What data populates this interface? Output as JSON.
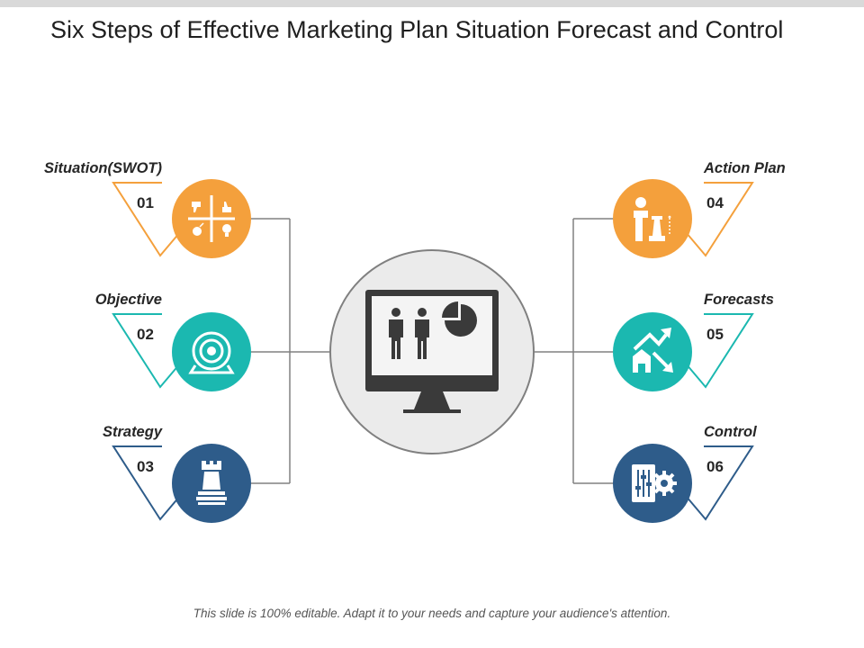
{
  "title": "Six Steps of Effective Marketing Plan Situation Forecast and Control",
  "footer": "This slide is 100% editable.  Adapt it to your needs and capture your audience's attention.",
  "colors": {
    "orange": "#F4A03C",
    "teal": "#1BB8B0",
    "blue": "#2E5C8A",
    "connector": "#808080",
    "center_fill": "#EBEBEB",
    "center_stroke": "#808080",
    "icon_dark": "#3a3a3a"
  },
  "center": {
    "icon": "monitor-presentation-icon"
  },
  "steps": [
    {
      "number": "01",
      "label": "Situation(SWOT)",
      "color": "orange",
      "icon": "swot-grid-icon"
    },
    {
      "number": "02",
      "label": "Objective",
      "color": "teal",
      "icon": "target-icon"
    },
    {
      "number": "03",
      "label": "Strategy",
      "color": "blue",
      "icon": "chess-rook-icon"
    },
    {
      "number": "04",
      "label": "Action Plan",
      "color": "orange",
      "icon": "businessman-chess-icon"
    },
    {
      "number": "05",
      "label": "Forecasts",
      "color": "teal",
      "icon": "growth-arrow-icon"
    },
    {
      "number": "06",
      "label": "Control",
      "color": "blue",
      "icon": "control-panel-gear-icon"
    }
  ]
}
